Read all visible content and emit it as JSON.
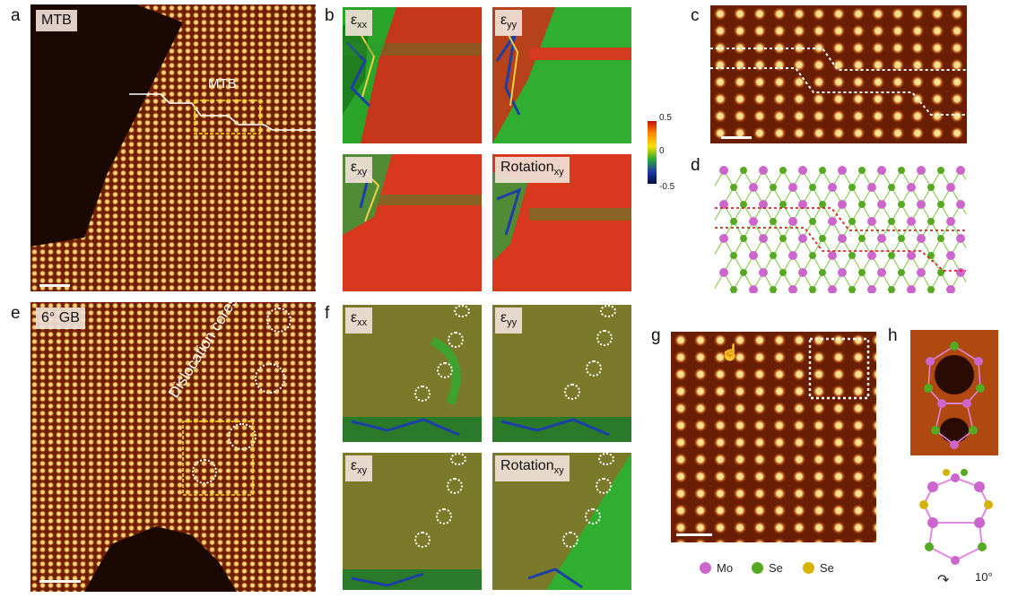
{
  "panels": {
    "a": {
      "letter": "a",
      "label": "MTB",
      "inset_label": "MTB"
    },
    "b": {
      "letter": "b",
      "maps": [
        "εxx",
        "εyy",
        "εxy",
        "Rotationxy"
      ],
      "colorbar": {
        "max": "0.5",
        "mid": "0",
        "min": "-0.5"
      }
    },
    "c": {
      "letter": "c"
    },
    "d": {
      "letter": "d"
    },
    "e": {
      "letter": "e",
      "label": "6° GB",
      "annotation": "Dislocation cores"
    },
    "f": {
      "letter": "f",
      "maps": [
        "εxx",
        "εyy",
        "εxy",
        "Rotationxy"
      ]
    },
    "g": {
      "letter": "g"
    },
    "h": {
      "letter": "h",
      "angle": "10°"
    }
  },
  "legend": [
    {
      "label": "Mo",
      "color": "#cc66cc"
    },
    {
      "label": "Se",
      "color": "#55aa22"
    },
    {
      "label": "Se",
      "color": "#d4b400"
    }
  ],
  "colors": {
    "stm_base": "#6a1f04",
    "strain_red": "#d7381e",
    "strain_green": "#2fae2f",
    "boundary_line": "#ffffff",
    "box_yellow": "#ffd400",
    "dashed_red": "#e02020"
  }
}
